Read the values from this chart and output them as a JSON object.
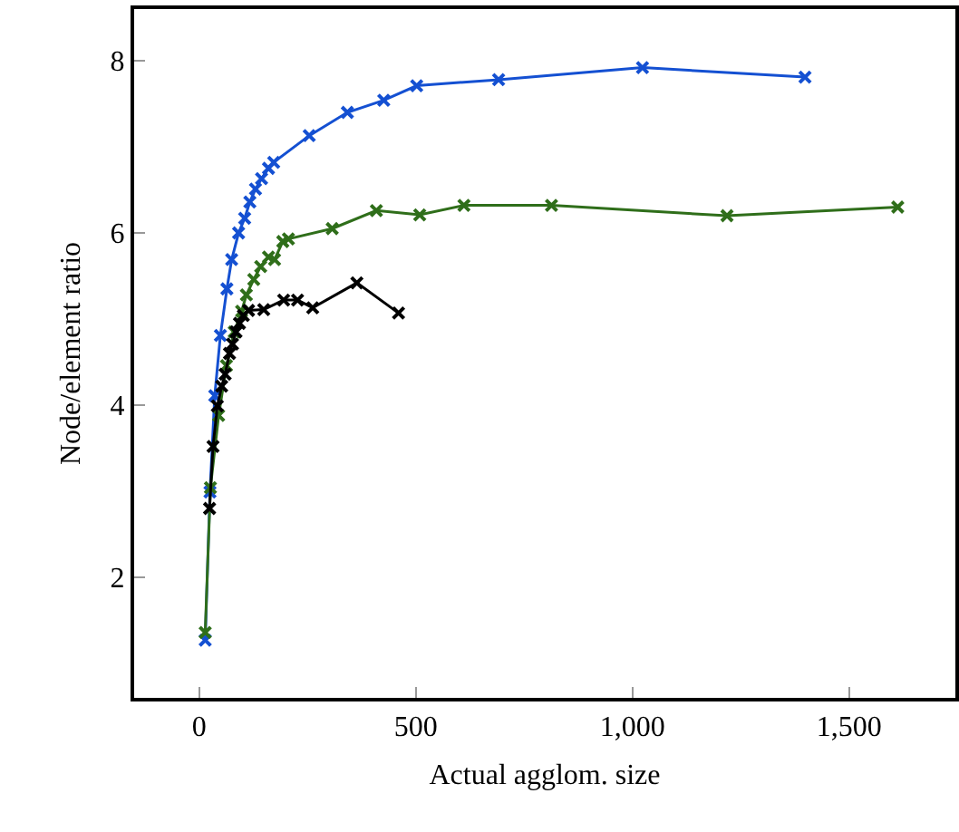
{
  "chart_data": {
    "type": "line",
    "xlabel": "Actual agglom. size",
    "ylabel": "Node/element ratio",
    "marker": "cross",
    "line_style": "solid",
    "grid": false,
    "xlim": [
      -150,
      1745
    ],
    "ylim": [
      0.6,
      8.6
    ],
    "xticks": [
      0,
      500,
      {
        "value": 1000,
        "label": "1,000"
      },
      {
        "value": 1500,
        "label": "1,500"
      }
    ],
    "yticks": [
      2,
      4,
      6,
      8
    ],
    "series": [
      {
        "color": "#1450d2",
        "x": [
          14,
          25,
          36,
          49,
          64,
          75,
          91,
          105,
          117,
          130,
          144,
          160,
          172,
          254,
          342,
          426,
          502,
          691,
          1023,
          1398
        ],
        "values": [
          1.27,
          2.99,
          4.11,
          4.81,
          5.35,
          5.69,
          6.0,
          6.17,
          6.36,
          6.51,
          6.63,
          6.75,
          6.82,
          7.13,
          7.4,
          7.54,
          7.71,
          7.78,
          7.92,
          7.81
        ]
      },
      {
        "color": "#2f6e1a",
        "x": [
          14,
          26,
          45,
          63,
          81,
          98,
          109,
          126,
          142,
          160,
          174,
          193,
          206,
          307,
          409,
          509,
          611,
          813,
          1218,
          1612
        ],
        "values": [
          1.36,
          3.04,
          3.88,
          4.46,
          4.85,
          5.09,
          5.28,
          5.46,
          5.61,
          5.72,
          5.69,
          5.9,
          5.93,
          6.05,
          6.26,
          6.21,
          6.32,
          6.32,
          6.2,
          6.3
        ]
      },
      {
        "color": "#000000",
        "x": [
          24,
          32,
          42,
          52,
          60,
          70,
          77,
          85,
          93,
          102,
          114,
          149,
          195,
          227,
          262,
          364,
          460
        ],
        "values": [
          2.8,
          3.52,
          3.99,
          4.22,
          4.36,
          4.6,
          4.71,
          4.85,
          4.95,
          5.04,
          5.1,
          5.11,
          5.22,
          5.22,
          5.13,
          5.42,
          5.07
        ]
      }
    ]
  }
}
